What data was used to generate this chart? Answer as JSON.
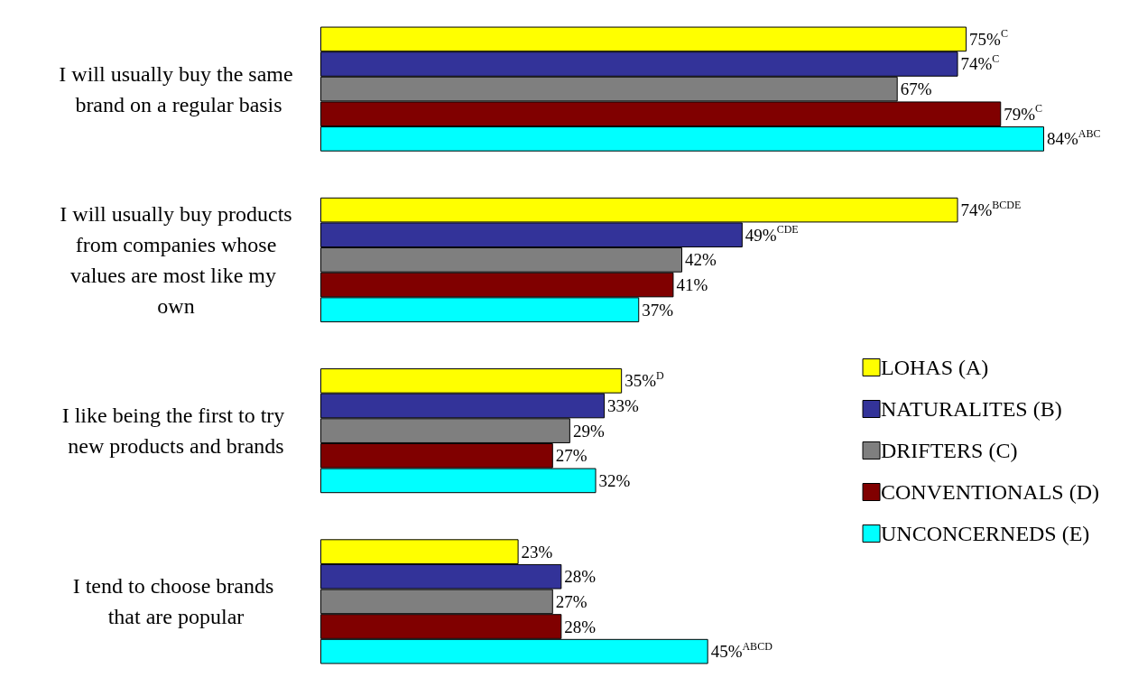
{
  "chart_data": {
    "type": "bar",
    "orientation": "horizontal",
    "categories": [
      "I will usually buy the same brand on a regular basis",
      "I will usually buy products from companies whose values are most like my own",
      "I like being the first to try new products and brands",
      "I tend to choose brands that are popular"
    ],
    "series": [
      {
        "name": "LOHAS (A)",
        "color": "#ffff00",
        "values": [
          75,
          74,
          35,
          23
        ],
        "value_labels": [
          "75%$^{C}$",
          "74%$^{BCDE}$",
          "35%$^{D}$",
          "23%"
        ]
      },
      {
        "name": "NATURALITES (B)",
        "color": "#333399",
        "values": [
          74,
          49,
          33,
          28
        ],
        "value_labels": [
          "74%$^{C}$",
          "49%$^{CDE}$",
          "33%",
          "28%"
        ]
      },
      {
        "name": "DRIFTERS (C)",
        "color": "#7f7f7f",
        "values": [
          67,
          42,
          29,
          27
        ],
        "value_labels": [
          "67%",
          "42%",
          "29%",
          "27%"
        ]
      },
      {
        "name": "CONVENTIONALS (D)",
        "color": "#800000",
        "values": [
          79,
          41,
          27,
          28
        ],
        "value_labels": [
          "79%$^{C}$",
          "41%",
          "27%",
          "28%"
        ]
      },
      {
        "name": "UNCONCERNEDS (E)",
        "color": "#00ffff",
        "values": [
          84,
          37,
          32,
          45
        ],
        "value_labels": [
          "84%$^{ABC}$",
          "37%",
          "32%",
          "45%$^{ABCD}$"
        ]
      }
    ],
    "legend": "right",
    "tick_labels": "y"
  }
}
